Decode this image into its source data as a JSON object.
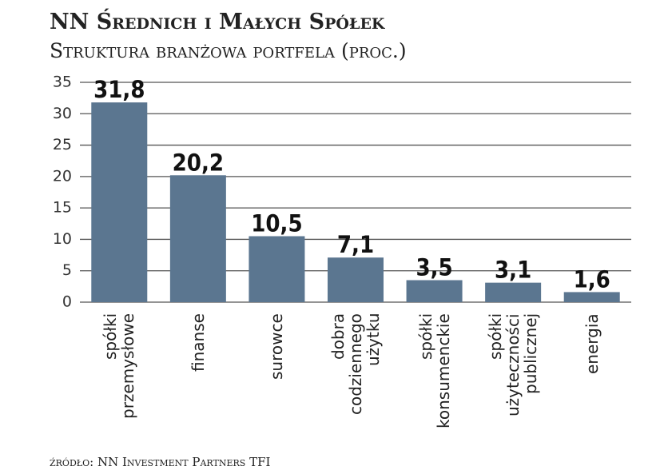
{
  "chart_data": {
    "type": "bar",
    "title": "NN Średnich i Małych Spółek",
    "subtitle": "Struktura branżowa portfela (proc.)",
    "categories": [
      "spółki przemysłowe",
      "finanse",
      "surowce",
      "dobra codziennego użytku",
      "spółki konsumenckie",
      "spółki użyteczności publicznej",
      "energia"
    ],
    "values": [
      31.8,
      20.2,
      10.5,
      7.1,
      3.5,
      3.1,
      1.6
    ],
    "value_labels": [
      "31,8",
      "20,2",
      "10,5",
      "7,1",
      "3,5",
      "3,1",
      "1,6"
    ],
    "color": "#5b7690",
    "ylim": [
      0,
      35
    ],
    "yticks": [
      0,
      5,
      10,
      15,
      20,
      25,
      30,
      35
    ],
    "grid": true,
    "source": "źródło: NN Investment Partners TFI"
  }
}
